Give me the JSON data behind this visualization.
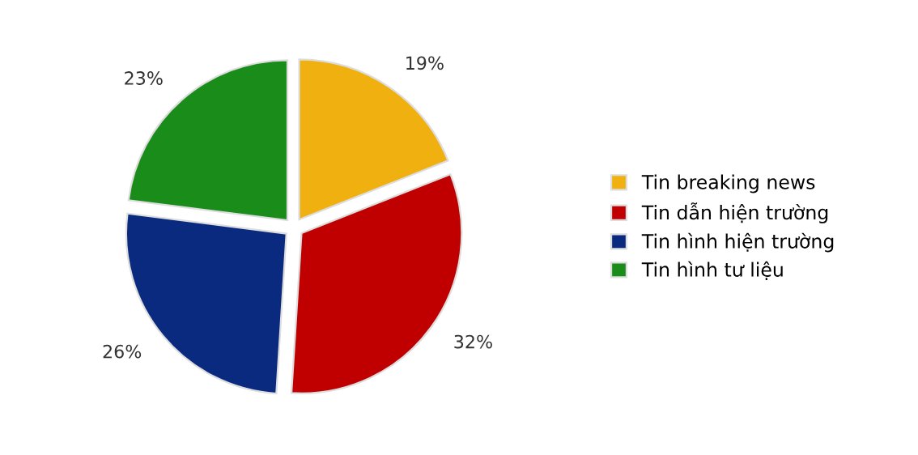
{
  "chart_data": {
    "type": "pie",
    "categories": [
      "Tin breaking news",
      "Tin dẫn hiện trường",
      "Tin hình hiện trường",
      "Tin hình tư liệu"
    ],
    "values": [
      19,
      32,
      26,
      23
    ],
    "value_labels": [
      "19%",
      "32%",
      "26%",
      "23%"
    ],
    "colors": [
      "#f0b010",
      "#c00000",
      "#0a2a80",
      "#1a8c1a"
    ],
    "legend": "right"
  }
}
